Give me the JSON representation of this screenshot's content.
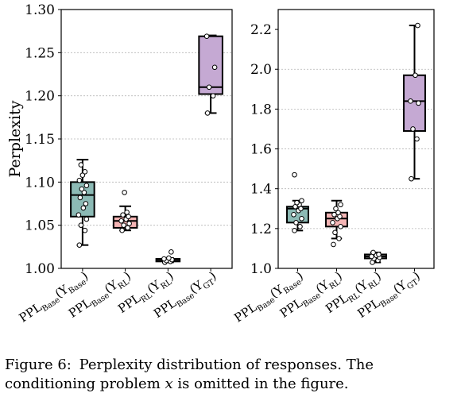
{
  "chart_data": [
    {
      "type": "box",
      "ylabel": "Perplexity",
      "ylim": [
        1.0,
        1.3
      ],
      "yticks": [
        "1.00",
        "1.05",
        "1.10",
        "1.15",
        "1.20",
        "1.25",
        "1.30"
      ],
      "grid": "horizontal dashed",
      "categories": [
        {
          "main": "PPL",
          "sub1": "Base",
          "arg": "(Y",
          "sub2": "Base",
          "end": ")"
        },
        {
          "main": "PPL",
          "sub1": "Base",
          "arg": "(Y",
          "sub2": "RL",
          "end": ")"
        },
        {
          "main": "PPL",
          "sub1": "RL",
          "arg": "(Y",
          "sub2": "RL",
          "end": ")"
        },
        {
          "main": "PPL",
          "sub1": "Base",
          "arg": "(Y",
          "sub2": "GT",
          "end": ")"
        }
      ],
      "boxes": [
        {
          "color": "#8cbab5",
          "whislo": 1.027,
          "q1": 1.06,
          "median": 1.085,
          "q3": 1.1,
          "whishi": 1.126,
          "points": [
            1.027,
            1.044,
            1.05,
            1.057,
            1.062,
            1.07,
            1.075,
            1.082,
            1.088,
            1.092,
            1.096,
            1.102,
            1.108,
            1.112,
            1.12
          ]
        },
        {
          "color": "#f4b4b4",
          "whislo": 1.044,
          "q1": 1.047,
          "median": 1.055,
          "q3": 1.06,
          "whishi": 1.072,
          "points": [
            1.044,
            1.047,
            1.05,
            1.052,
            1.055,
            1.057,
            1.06,
            1.062,
            1.065,
            1.088
          ]
        },
        {
          "color": "#8a8a8a",
          "whislo": 1.007,
          "q1": 1.008,
          "median": 1.009,
          "q3": 1.011,
          "whishi": 1.012,
          "points": [
            1.007,
            1.008,
            1.009,
            1.01,
            1.011,
            1.012,
            1.019
          ]
        },
        {
          "color": "#c5a9d3",
          "whislo": 1.18,
          "q1": 1.202,
          "median": 1.21,
          "q3": 1.269,
          "whishi": 1.27,
          "points": [
            1.18,
            1.2,
            1.21,
            1.233,
            1.269
          ]
        }
      ]
    },
    {
      "type": "box",
      "ylim": [
        1.0,
        2.3
      ],
      "yticks": [
        "1.0",
        "1.2",
        "1.4",
        "1.6",
        "1.8",
        "2.0",
        "2.2"
      ],
      "grid": "horizontal dashed",
      "categories": [
        {
          "main": "PPL",
          "sub1": "Base",
          "arg": "(Y",
          "sub2": "Base",
          "end": ")"
        },
        {
          "main": "PPL",
          "sub1": "Base",
          "arg": "(Y",
          "sub2": "RL",
          "end": ")"
        },
        {
          "main": "PPL",
          "sub1": "RL",
          "arg": "(Y",
          "sub2": "RL",
          "end": ")"
        },
        {
          "main": "PPL",
          "sub1": "Base",
          "arg": "(Y",
          "sub2": "GT",
          "end": ")"
        }
      ],
      "boxes": [
        {
          "color": "#8cbab5",
          "whislo": 1.19,
          "q1": 1.23,
          "median": 1.3,
          "q3": 1.31,
          "whishi": 1.34,
          "points": [
            1.19,
            1.21,
            1.23,
            1.25,
            1.27,
            1.29,
            1.3,
            1.31,
            1.32,
            1.33,
            1.34,
            1.47
          ]
        },
        {
          "color": "#f4b4b4",
          "whislo": 1.15,
          "q1": 1.21,
          "median": 1.25,
          "q3": 1.28,
          "whishi": 1.34,
          "points": [
            1.12,
            1.15,
            1.18,
            1.21,
            1.23,
            1.25,
            1.26,
            1.27,
            1.28,
            1.3,
            1.32
          ]
        },
        {
          "color": "#8a8a8a",
          "whislo": 1.03,
          "q1": 1.05,
          "median": 1.06,
          "q3": 1.07,
          "whishi": 1.08,
          "points": [
            1.03,
            1.04,
            1.05,
            1.055,
            1.06,
            1.065,
            1.07,
            1.08
          ]
        },
        {
          "color": "#c5a9d3",
          "whislo": 1.45,
          "q1": 1.69,
          "median": 1.84,
          "q3": 1.97,
          "whishi": 2.22,
          "points": [
            1.45,
            1.65,
            1.7,
            1.83,
            1.84,
            1.97,
            2.22
          ]
        }
      ]
    }
  ],
  "caption": {
    "label": "Figure 6:",
    "text_before": "Perplexity distribution of responses. The conditioning problem",
    "math": "x",
    "text_after": "is omitted in the figure."
  }
}
